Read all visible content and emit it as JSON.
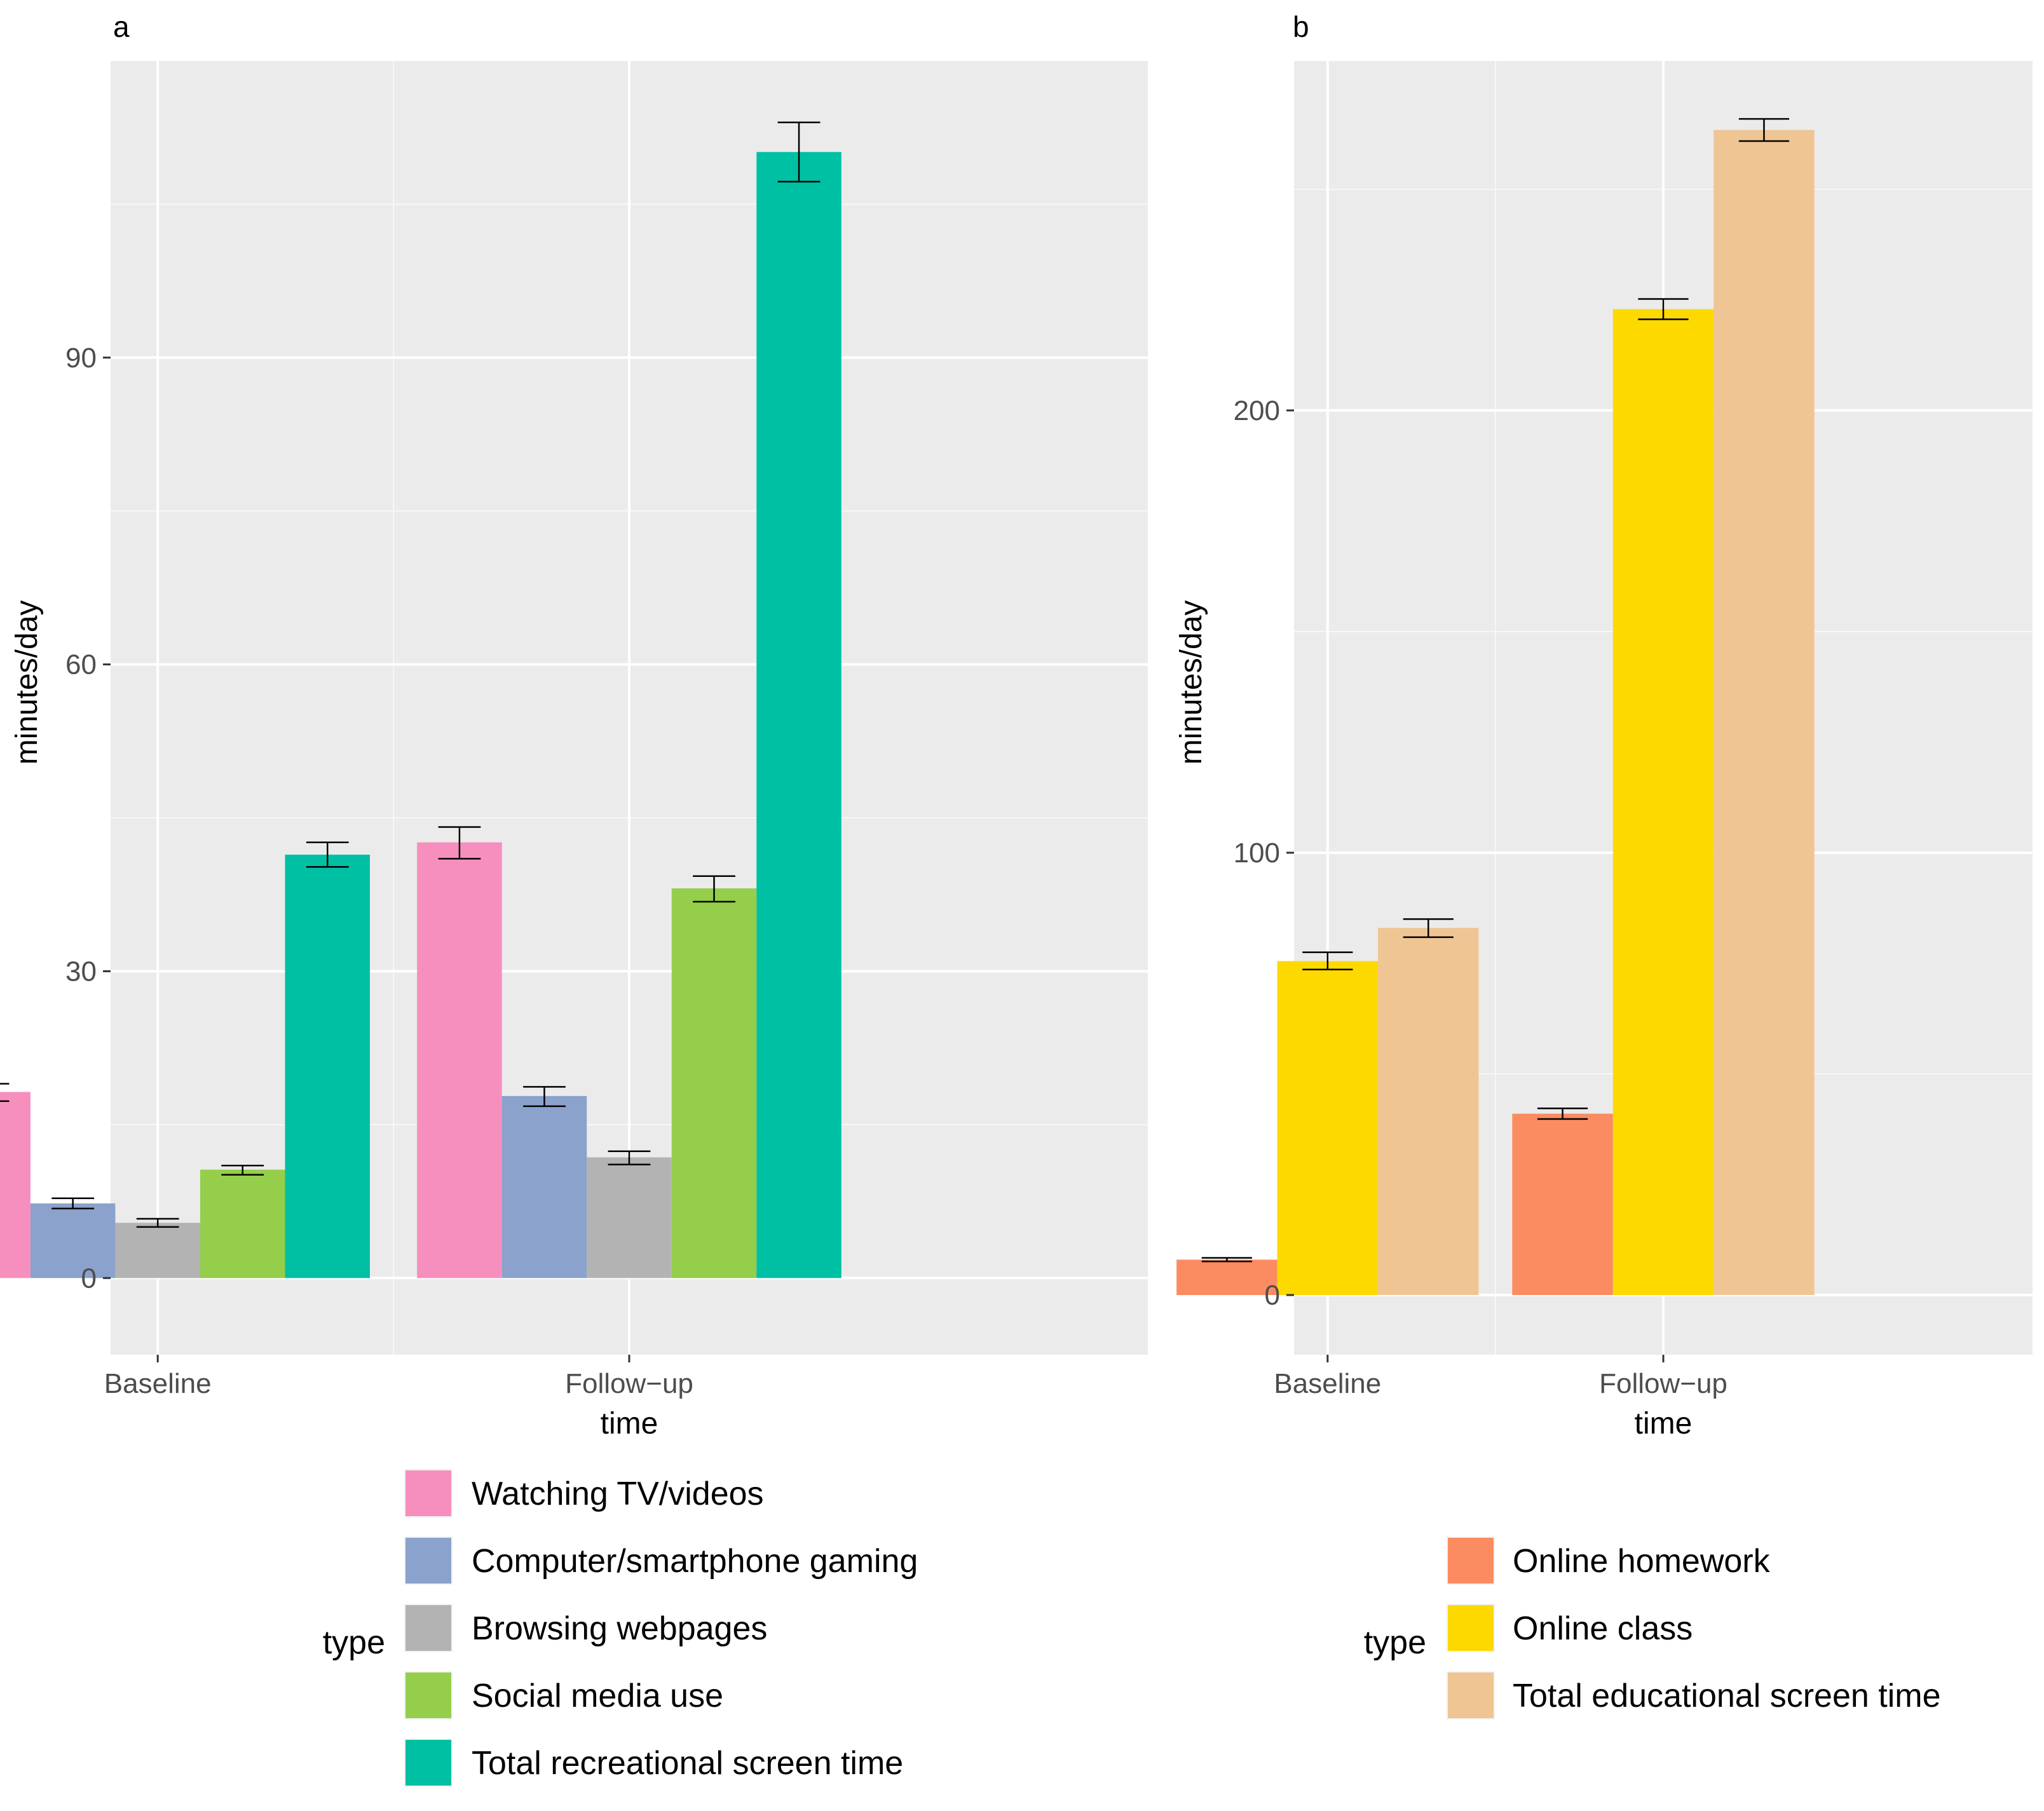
{
  "chart_data": [
    {
      "type": "bar",
      "panel_label": "a",
      "xlabel": "time",
      "ylabel": "minutes/day",
      "categories": [
        "Baseline",
        "Follow−up"
      ],
      "ylim": [
        -7.5,
        119
      ],
      "yticks": [
        0,
        30,
        60,
        90
      ],
      "grid": true,
      "legend": {
        "title": "type",
        "position": "bottom"
      },
      "series": [
        {
          "name": "Watching TV/videos",
          "color": "#F78FBE",
          "values": [
            18.2,
            42.6
          ],
          "error": [
            [
              17.3,
              19.0
            ],
            [
              41.0,
              44.1
            ]
          ]
        },
        {
          "name": "Computer/smartphone gaming",
          "color": "#8AA2CC",
          "values": [
            7.3,
            17.8
          ],
          "error": [
            [
              6.8,
              7.8
            ],
            [
              16.8,
              18.7
            ]
          ]
        },
        {
          "name": "Browsing webpages",
          "color": "#B3B3B3",
          "values": [
            5.4,
            11.8
          ],
          "error": [
            [
              5.0,
              5.8
            ],
            [
              11.1,
              12.4
            ]
          ]
        },
        {
          "name": "Social media use",
          "color": "#95CE4A",
          "values": [
            10.6,
            38.1
          ],
          "error": [
            [
              10.1,
              11.0
            ],
            [
              36.8,
              39.3
            ]
          ]
        },
        {
          "name": "Total recreational screen time",
          "color": "#00C0A3",
          "values": [
            41.4,
            110.1
          ],
          "error": [
            [
              40.2,
              42.6
            ],
            [
              107.2,
              113.0
            ]
          ]
        }
      ]
    },
    {
      "type": "bar",
      "panel_label": "b",
      "xlabel": "time",
      "ylabel": "minutes/day",
      "categories": [
        "Baseline",
        "Follow−up"
      ],
      "ylim": [
        -13.5,
        279
      ],
      "yticks": [
        0,
        100,
        200
      ],
      "grid": true,
      "legend": {
        "title": "type",
        "position": "bottom"
      },
      "series": [
        {
          "name": "Online homework",
          "color": "#FB8C61",
          "values": [
            8.0,
            41.0
          ],
          "error": [
            [
              7.6,
              8.4
            ],
            [
              39.8,
              42.2
            ]
          ]
        },
        {
          "name": "Online class",
          "color": "#FDD900",
          "values": [
            75.5,
            222.9
          ],
          "error": [
            [
              73.6,
              77.5
            ],
            [
              220.6,
              225.2
            ]
          ]
        },
        {
          "name": "Total educational screen time",
          "color": "#EFC594",
          "values": [
            83.0,
            263.4
          ],
          "error": [
            [
              80.9,
              85.0
            ],
            [
              260.9,
              265.9
            ]
          ]
        }
      ]
    }
  ]
}
